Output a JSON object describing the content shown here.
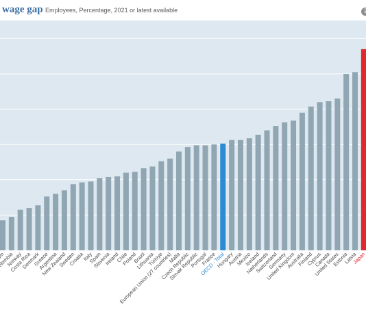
{
  "header": {
    "title": "wage gap",
    "subtitle": "Employees, Percentage, 2021 or latest available",
    "info_icon": "info-icon"
  },
  "colors": {
    "plot_bg": "#dde8f0",
    "bar": "#91a6b3",
    "highlight_oecd": "#2d8bd3",
    "highlight_japan": "#e2282c",
    "grid": "#ffffff"
  },
  "chart_data": {
    "type": "bar",
    "title": "wage gap",
    "subtitle": "Employees, Percentage, 2021 or latest available",
    "grid": true,
    "ylim": [
      0,
      28.5
    ],
    "categories": [
      "Belgium",
      "Colombia",
      "Norway",
      "Costa Rica",
      "Denmark",
      "Greece",
      "Argentina",
      "New Zealand",
      "Sweden",
      "Croatia",
      "Italy",
      "Spain",
      "Slovenia",
      "Ireland",
      "Chile",
      "Poland",
      "Brazil",
      "Lithuania",
      "Türkiye",
      "European Union (27 countries)",
      "Malta",
      "Czech Republic",
      "Slovak Republic",
      "Portugal",
      "France",
      "OECD - Total",
      "Hungary",
      "Austria",
      "Mexico",
      "Iceland",
      "Netherlands",
      "Switzerland",
      "Germany",
      "United Kingdom",
      "Australia",
      "Finland",
      "Cyprus",
      "Canada",
      "United States",
      "Estonia",
      "Latvia",
      "Japan"
    ],
    "values": [
      3.4,
      3.8,
      4.6,
      4.8,
      5.1,
      6.1,
      6.4,
      6.8,
      7.5,
      7.7,
      7.8,
      8.2,
      8.3,
      8.4,
      8.8,
      8.9,
      9.3,
      9.5,
      10.1,
      10.4,
      11.2,
      11.7,
      11.9,
      11.9,
      12.0,
      12.1,
      12.5,
      12.5,
      12.7,
      13.1,
      13.6,
      14.1,
      14.5,
      14.7,
      15.6,
      16.3,
      16.8,
      16.9,
      17.2,
      20.0,
      20.2,
      22.8
    ],
    "highlight": {
      "OECD - Total": "#2d8bd3",
      "Japan": "#e2282c"
    }
  }
}
